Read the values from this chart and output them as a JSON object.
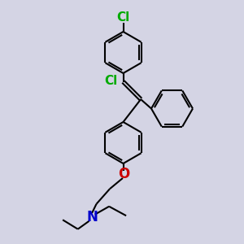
{
  "bg_color": "#d4d4e4",
  "bond_color": "#000000",
  "cl_color": "#00aa00",
  "o_color": "#cc0000",
  "n_color": "#0000cc",
  "lw": 1.5,
  "fig_w": 3.0,
  "fig_h": 3.0,
  "dpi": 100,
  "xlim": [
    0,
    10
  ],
  "ylim": [
    0,
    10
  ],
  "ring_r": 0.85,
  "font_size": 11
}
